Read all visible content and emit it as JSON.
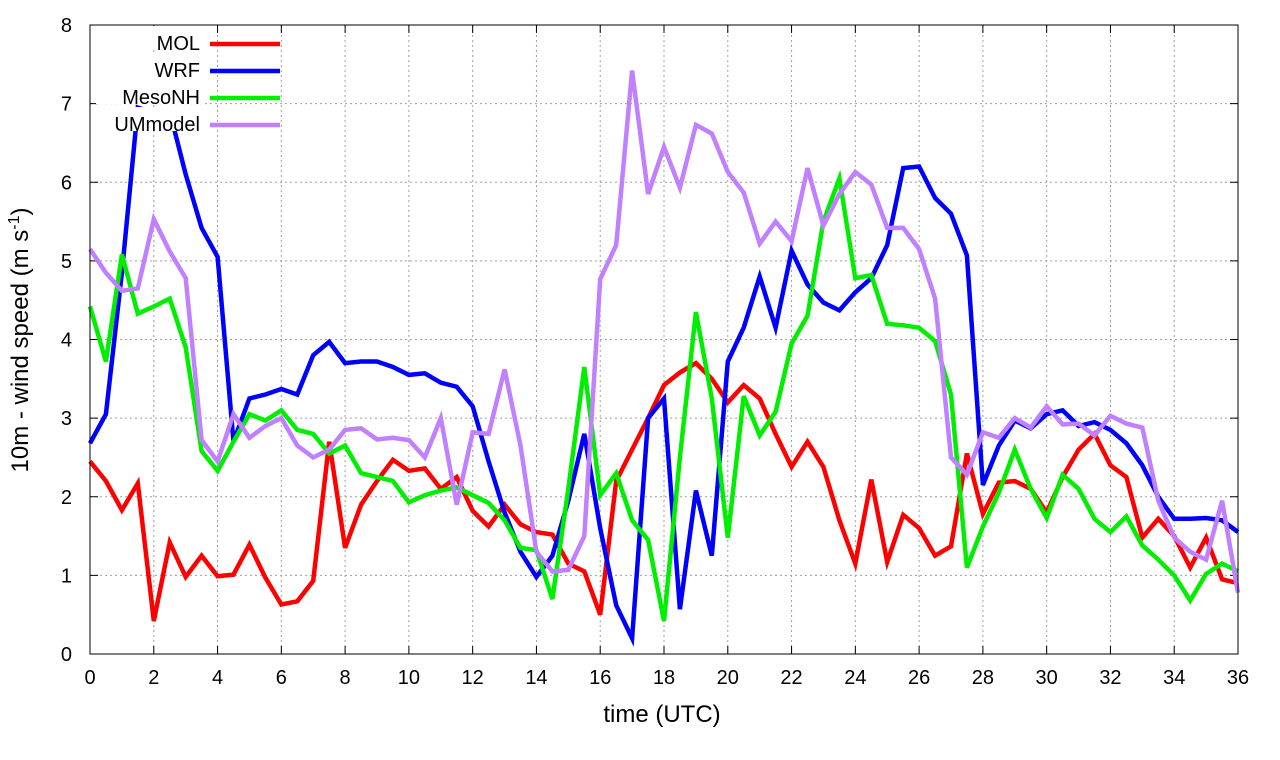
{
  "chart_data": {
    "type": "line",
    "title": "",
    "xlabel": "time (UTC)",
    "ylabel_main": "10m - wind speed  (m s",
    "ylabel_sup": "-1",
    "ylabel_close": ")",
    "xlim": [
      0,
      36
    ],
    "ylim": [
      0,
      8
    ],
    "xticks": [
      0,
      2,
      4,
      6,
      8,
      10,
      12,
      14,
      16,
      18,
      20,
      22,
      24,
      26,
      28,
      30,
      32,
      34,
      36
    ],
    "yticks": [
      0,
      1,
      2,
      3,
      4,
      5,
      6,
      7,
      8
    ],
    "grid": true,
    "legend_position": "top-left",
    "x_step": 0.5,
    "series": [
      {
        "name": "MOL",
        "color": "#ff0000",
        "values": [
          2.45,
          2.2,
          1.83,
          2.17,
          0.42,
          1.42,
          0.98,
          1.25,
          0.99,
          1.01,
          1.39,
          0.97,
          0.63,
          0.67,
          0.93,
          2.7,
          1.35,
          1.9,
          2.2,
          2.47,
          2.33,
          2.36,
          2.1,
          2.25,
          1.82,
          1.62,
          1.9,
          1.65,
          1.55,
          1.52,
          1.15,
          1.05,
          0.5,
          2.2,
          2.6,
          3.0,
          3.42,
          3.58,
          3.7,
          3.5,
          3.2,
          3.42,
          3.25,
          2.8,
          2.38,
          2.7,
          2.38,
          1.7,
          1.15,
          2.22,
          1.17,
          1.77,
          1.6,
          1.25,
          1.37,
          2.55,
          1.78,
          2.18,
          2.2,
          2.1,
          1.8,
          2.25,
          2.6,
          2.8,
          2.4,
          2.25,
          1.48,
          1.72,
          1.5,
          1.1,
          1.48,
          0.95,
          0.9
        ]
      },
      {
        "name": "WRF",
        "color": "#0000ff",
        "values": [
          2.68,
          3.05,
          4.85,
          6.95,
          6.88,
          6.9,
          6.1,
          5.42,
          5.05,
          2.7,
          3.25,
          3.3,
          3.37,
          3.3,
          3.8,
          3.97,
          3.7,
          3.72,
          3.72,
          3.65,
          3.55,
          3.57,
          3.45,
          3.4,
          3.15,
          2.45,
          1.8,
          1.3,
          0.98,
          1.25,
          1.95,
          2.8,
          1.6,
          0.62,
          0.2,
          3.0,
          3.25,
          0.57,
          2.08,
          1.25,
          3.72,
          4.15,
          4.8,
          4.15,
          5.13,
          4.7,
          4.47,
          4.37,
          4.6,
          4.78,
          5.2,
          6.18,
          6.2,
          5.8,
          5.6,
          5.07,
          2.15,
          2.65,
          2.97,
          2.87,
          3.05,
          3.1,
          2.9,
          2.95,
          2.85,
          2.68,
          2.4,
          2.0,
          1.72,
          1.72,
          1.73,
          1.7,
          1.55
        ]
      },
      {
        "name": "MesoNH",
        "color": "#00ee00",
        "values": [
          4.42,
          3.72,
          5.08,
          4.33,
          4.42,
          4.52,
          3.9,
          2.58,
          2.33,
          2.7,
          3.05,
          2.97,
          3.1,
          2.85,
          2.8,
          2.55,
          2.65,
          2.3,
          2.25,
          2.2,
          1.93,
          2.02,
          2.08,
          2.12,
          2.02,
          1.92,
          1.7,
          1.35,
          1.32,
          0.7,
          2.1,
          3.65,
          2.02,
          2.3,
          1.7,
          1.45,
          0.42,
          2.5,
          4.35,
          3.25,
          1.48,
          3.28,
          2.78,
          3.08,
          3.95,
          4.3,
          5.5,
          6.05,
          4.78,
          4.82,
          4.2,
          4.18,
          4.15,
          3.98,
          3.3,
          1.1,
          1.62,
          2.05,
          2.6,
          2.1,
          1.73,
          2.28,
          2.1,
          1.72,
          1.55,
          1.75,
          1.38,
          1.2,
          1.0,
          0.68,
          1.02,
          1.15,
          1.05
        ]
      },
      {
        "name": "UMmodel",
        "color": "#c080ff",
        "values": [
          5.15,
          4.85,
          4.62,
          4.65,
          5.53,
          5.12,
          4.78,
          2.72,
          2.45,
          3.05,
          2.75,
          2.9,
          3.0,
          2.65,
          2.5,
          2.6,
          2.85,
          2.87,
          2.73,
          2.75,
          2.72,
          2.5,
          3.0,
          1.9,
          2.82,
          2.8,
          3.62,
          2.65,
          1.3,
          1.05,
          1.07,
          1.5,
          4.77,
          5.2,
          7.42,
          5.85,
          6.45,
          5.93,
          6.73,
          6.62,
          6.13,
          5.87,
          5.22,
          5.5,
          5.25,
          6.18,
          5.45,
          5.85,
          6.13,
          5.97,
          5.42,
          5.42,
          5.15,
          4.52,
          2.5,
          2.28,
          2.82,
          2.75,
          3.0,
          2.88,
          3.15,
          2.92,
          2.93,
          2.78,
          3.03,
          2.93,
          2.88,
          1.95,
          1.48,
          1.3,
          1.2,
          1.95,
          0.78
        ]
      }
    ]
  }
}
